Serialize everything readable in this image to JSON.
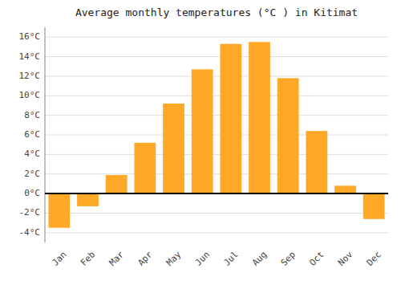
{
  "chart_data": {
    "type": "bar",
    "title": "Average monthly temperatures (°C ) in Kitimat",
    "categories": [
      "Jan",
      "Feb",
      "Mar",
      "Apr",
      "May",
      "Jun",
      "Jul",
      "Aug",
      "Sep",
      "Oct",
      "Nov",
      "Dec"
    ],
    "values": [
      -3.5,
      -1.3,
      1.9,
      5.2,
      9.2,
      12.7,
      15.3,
      15.5,
      11.8,
      6.4,
      0.8,
      -2.6
    ],
    "color": "#FFA726",
    "ylim": [
      -5,
      17
    ],
    "yticks": [
      {
        "value": -4,
        "label": "-4°C"
      },
      {
        "value": -2,
        "label": "-2°C"
      },
      {
        "value": 0,
        "label": "0°C"
      },
      {
        "value": 2,
        "label": "2°C"
      },
      {
        "value": 4,
        "label": "4°C"
      },
      {
        "value": 6,
        "label": "6°C"
      },
      {
        "value": 8,
        "label": "8°C"
      },
      {
        "value": 10,
        "label": "10°C"
      },
      {
        "value": 12,
        "label": "12°C"
      },
      {
        "value": 14,
        "label": "14°C"
      },
      {
        "value": 16,
        "label": "16°C"
      }
    ],
    "grid": true
  }
}
